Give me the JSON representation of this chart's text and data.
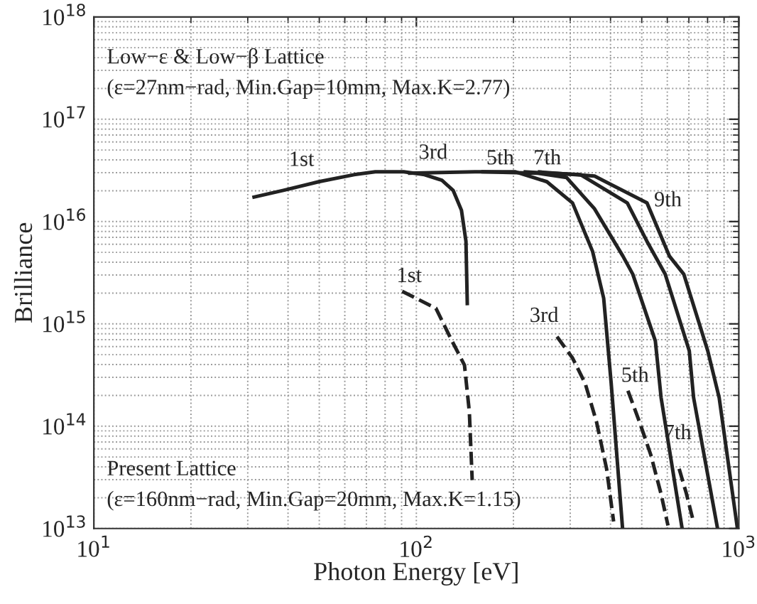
{
  "chart_data": {
    "type": "line",
    "xlabel": "Photon Energy [eV]",
    "ylabel": "Brilliance",
    "log": "xy",
    "grid": true,
    "xlim": [
      10,
      1000
    ],
    "ylim": [
      10000000000000.0,
      1e+18
    ],
    "xticks": [
      {
        "value": 10,
        "label": "10$^{1}$"
      },
      {
        "value": 100,
        "label": "10$^{2}$"
      },
      {
        "value": 1000,
        "label": "10$^{3}$"
      }
    ],
    "yticks": [
      {
        "value": 10000000000000.0,
        "label": "10$^{13}$"
      },
      {
        "value": 100000000000000.0,
        "label": "10$^{14}$"
      },
      {
        "value": 1000000000000000.0,
        "label": "10$^{15}$"
      },
      {
        "value": 1e+16,
        "label": "10$^{16}$"
      },
      {
        "value": 1e+17,
        "label": "10$^{17}$"
      },
      {
        "value": 1e+18,
        "label": "10$^{18}$"
      }
    ],
    "series": [
      {
        "color": "#222222",
        "line_style": "solid",
        "x": [
          31.0,
          38.7,
          49.8,
          64.1,
          74.6,
          91.4,
          106,
          120,
          130,
          138,
          142.5,
          143.9
        ],
        "values": [
          1.72e+16,
          2.02e+16,
          2.45e+16,
          2.87e+16,
          3.06e+16,
          3.06e+16,
          2.87e+16,
          2.53e+16,
          2.02e+16,
          1.29e+16,
          6400000000000000.0,
          1520000000000000.0
        ]
      },
      {
        "color": "#222222",
        "line_style": "solid",
        "x": [
          94.2,
          152,
          203,
          254,
          305,
          352,
          381,
          402,
          436
        ],
        "values": [
          2.97e+16,
          3.06e+16,
          3.06e+16,
          2.45e+16,
          1.52e+16,
          5100000000000000.0,
          1780000000000000.0,
          261000000000000.0,
          10000000000000.0
        ]
      },
      {
        "color": "#222222",
        "line_style": "solid",
        "x": [
          159,
          238,
          292,
          357,
          437,
          469,
          551,
          574,
          667
        ],
        "values": [
          3.06e+16,
          2.97e+16,
          2.7e+16,
          1.33e+16,
          4600000000000000.0,
          3060000000000000.0,
          680000000000000.0,
          190000000000000.0,
          10000000000000.0
        ]
      },
      {
        "color": "#222222",
        "line_style": "solid",
        "x": [
          215,
          323,
          451,
          519,
          591,
          702,
          724,
          859
        ],
        "values": [
          3.06e+16,
          2.87e+16,
          1.52e+16,
          6400000000000000.0,
          3060000000000000.0,
          545000000000000.0,
          190000000000000.0,
          10000000000000.0
        ]
      },
      {
        "color": "#222222",
        "line_style": "solid",
        "x": [
          238,
          357,
          519,
          609,
          675,
          801,
          869,
          990
        ],
        "values": [
          3.06e+16,
          2.78e+16,
          1.52e+16,
          4600000000000000.0,
          3060000000000000.0,
          545000000000000.0,
          190000000000000.0,
          10000000000000.0
        ]
      },
      {
        "color": "#222222",
        "line_style": "dashed",
        "x": [
          90.4,
          115,
          129,
          141,
          146,
          149
        ],
        "values": [
          2080000000000000.0,
          1420000000000000.0,
          680000000000000.0,
          395000000000000.0,
          138000000000000.0,
          29700000000000.0
        ]
      },
      {
        "color": "#222222",
        "line_style": "dashed",
        "x": [
          273,
          305,
          334,
          362,
          389,
          409
        ],
        "values": [
          750000000000000.0,
          464000000000000.0,
          261000000000000.0,
          110000000000000.0,
          38300000000000.0,
          11700000000000.0
        ]
      },
      {
        "color": "#222222",
        "line_style": "dashed",
        "x": [
          453,
          492,
          533,
          573,
          603
        ],
        "values": [
          222000000000000.0,
          110000000000000.0,
          52800000000000.0,
          22200000000000.0,
          10700000000000.0
        ]
      },
      {
        "color": "#222222",
        "line_style": "dashed",
        "x": [
          653,
          687,
          723
        ],
        "values": [
          38300000000000.0,
          22200000000000.0,
          11700000000000.0
        ]
      }
    ],
    "annotations": [
      "Low−ε & Low−β Lattice",
      "(ε=27nm−rad, Min.Gap=10mm, Max.K=2.77)",
      "Present Lattice",
      "(ε=160nm−rad, Min.Gap=20mm, Max.K=1.15)",
      "1st",
      "3rd",
      "5th",
      "7th",
      "9th",
      "1st",
      "3rd",
      "5th",
      "7th"
    ]
  }
}
